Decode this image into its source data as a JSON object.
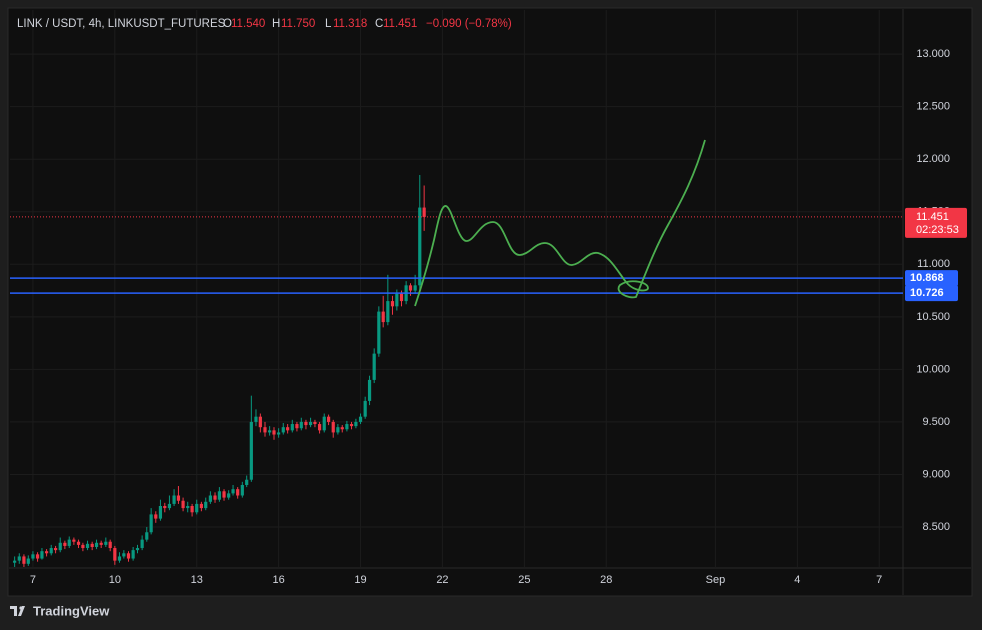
{
  "header": {
    "symbol": "LINK / USDT, 4h, LINKUSDT_FUTURES",
    "o_label": "O",
    "open": "11.540",
    "h_label": "H",
    "high": "11.750",
    "l_label": "L",
    "low": "11.318",
    "c_label": "C",
    "close": "11.451",
    "change": "−0.090 (−0.78%)"
  },
  "chart_data": {
    "type": "candlestick",
    "x": [
      6.33,
      6.5,
      6.67,
      6.83,
      7,
      7.17,
      7.33,
      7.5,
      7.67,
      7.83,
      8,
      8.17,
      8.33,
      8.5,
      8.67,
      8.83,
      9,
      9.17,
      9.33,
      9.5,
      9.67,
      9.83,
      10,
      10.17,
      10.33,
      10.5,
      10.67,
      10.83,
      11,
      11.17,
      11.33,
      11.5,
      11.67,
      11.83,
      12,
      12.17,
      12.33,
      12.5,
      12.67,
      12.83,
      13,
      13.17,
      13.33,
      13.5,
      13.67,
      13.83,
      14,
      14.17,
      14.33,
      14.5,
      14.67,
      14.83,
      15,
      15.17,
      15.33,
      15.5,
      15.67,
      15.83,
      16,
      16.17,
      16.33,
      16.5,
      16.67,
      16.83,
      17,
      17.17,
      17.33,
      17.5,
      17.67,
      17.83,
      18,
      18.17,
      18.33,
      18.5,
      18.67,
      18.83,
      19,
      19.17,
      19.33,
      19.5,
      19.67,
      19.83,
      20,
      20.17,
      20.33,
      20.5,
      20.67,
      20.83,
      21,
      21.17,
      21.33
    ],
    "ohlc": [
      [
        8.16,
        8.22,
        8.12,
        8.18
      ],
      [
        8.18,
        8.25,
        8.15,
        8.22
      ],
      [
        8.22,
        8.24,
        8.12,
        8.15
      ],
      [
        8.15,
        8.23,
        8.13,
        8.2
      ],
      [
        8.2,
        8.27,
        8.18,
        8.24
      ],
      [
        8.24,
        8.26,
        8.17,
        8.2
      ],
      [
        8.2,
        8.3,
        8.19,
        8.27
      ],
      [
        8.27,
        8.29,
        8.22,
        8.25
      ],
      [
        8.25,
        8.33,
        8.23,
        8.3
      ],
      [
        8.3,
        8.32,
        8.25,
        8.28
      ],
      [
        8.28,
        8.4,
        8.26,
        8.35
      ],
      [
        8.35,
        8.37,
        8.29,
        8.32
      ],
      [
        8.32,
        8.41,
        8.3,
        8.38
      ],
      [
        8.38,
        8.4,
        8.33,
        8.36
      ],
      [
        8.36,
        8.38,
        8.3,
        8.33
      ],
      [
        8.33,
        8.35,
        8.27,
        8.3
      ],
      [
        8.3,
        8.37,
        8.28,
        8.34
      ],
      [
        8.34,
        8.36,
        8.28,
        8.31
      ],
      [
        8.31,
        8.38,
        8.29,
        8.35
      ],
      [
        8.35,
        8.37,
        8.3,
        8.33
      ],
      [
        8.33,
        8.4,
        8.31,
        8.36
      ],
      [
        8.36,
        8.38,
        8.27,
        8.3
      ],
      [
        8.3,
        8.32,
        8.14,
        8.18
      ],
      [
        8.18,
        8.26,
        8.16,
        8.22
      ],
      [
        8.22,
        8.28,
        8.2,
        8.25
      ],
      [
        8.25,
        8.27,
        8.17,
        8.2
      ],
      [
        8.2,
        8.31,
        8.18,
        8.28
      ],
      [
        8.28,
        8.33,
        8.25,
        8.3
      ],
      [
        8.3,
        8.42,
        8.28,
        8.38
      ],
      [
        8.38,
        8.5,
        8.36,
        8.45
      ],
      [
        8.45,
        8.68,
        8.43,
        8.62
      ],
      [
        8.62,
        8.65,
        8.54,
        8.58
      ],
      [
        8.58,
        8.76,
        8.56,
        8.7
      ],
      [
        8.7,
        8.73,
        8.64,
        8.68
      ],
      [
        8.68,
        8.8,
        8.66,
        8.72
      ],
      [
        8.72,
        8.86,
        8.7,
        8.8
      ],
      [
        8.8,
        8.89,
        8.72,
        8.75
      ],
      [
        8.75,
        8.78,
        8.65,
        8.68
      ],
      [
        8.68,
        8.74,
        8.64,
        8.7
      ],
      [
        8.7,
        8.72,
        8.6,
        8.64
      ],
      [
        8.64,
        8.76,
        8.62,
        8.72
      ],
      [
        8.72,
        8.74,
        8.65,
        8.68
      ],
      [
        8.68,
        8.78,
        8.66,
        8.74
      ],
      [
        8.74,
        8.84,
        8.72,
        8.8
      ],
      [
        8.8,
        8.83,
        8.73,
        8.76
      ],
      [
        8.76,
        8.88,
        8.74,
        8.84
      ],
      [
        8.84,
        8.86,
        8.75,
        8.78
      ],
      [
        8.78,
        8.85,
        8.76,
        8.82
      ],
      [
        8.82,
        8.9,
        8.8,
        8.86
      ],
      [
        8.86,
        8.88,
        8.77,
        8.8
      ],
      [
        8.8,
        8.93,
        8.78,
        8.9
      ],
      [
        8.9,
        8.99,
        8.88,
        8.95
      ],
      [
        8.95,
        9.75,
        8.93,
        9.5
      ],
      [
        9.5,
        9.62,
        9.46,
        9.55
      ],
      [
        9.55,
        9.58,
        9.4,
        9.45
      ],
      [
        9.45,
        9.5,
        9.36,
        9.4
      ],
      [
        9.4,
        9.46,
        9.37,
        9.42
      ],
      [
        9.42,
        9.45,
        9.33,
        9.38
      ],
      [
        9.38,
        9.44,
        9.35,
        9.4
      ],
      [
        9.4,
        9.49,
        9.38,
        9.45
      ],
      [
        9.45,
        9.48,
        9.39,
        9.42
      ],
      [
        9.42,
        9.52,
        9.4,
        9.48
      ],
      [
        9.48,
        9.5,
        9.41,
        9.44
      ],
      [
        9.44,
        9.54,
        9.42,
        9.5
      ],
      [
        9.5,
        9.52,
        9.43,
        9.47
      ],
      [
        9.47,
        9.54,
        9.45,
        9.5
      ],
      [
        9.5,
        9.52,
        9.45,
        9.48
      ],
      [
        9.48,
        9.5,
        9.39,
        9.42
      ],
      [
        9.42,
        9.58,
        9.4,
        9.55
      ],
      [
        9.55,
        9.57,
        9.47,
        9.5
      ],
      [
        9.5,
        9.52,
        9.35,
        9.4
      ],
      [
        9.4,
        9.48,
        9.38,
        9.45
      ],
      [
        9.45,
        9.47,
        9.4,
        9.43
      ],
      [
        9.43,
        9.51,
        9.41,
        9.48
      ],
      [
        9.48,
        9.5,
        9.43,
        9.46
      ],
      [
        9.46,
        9.53,
        9.44,
        9.5
      ],
      [
        9.5,
        9.58,
        9.48,
        9.55
      ],
      [
        9.55,
        9.74,
        9.53,
        9.7
      ],
      [
        9.7,
        9.94,
        9.66,
        9.9
      ],
      [
        9.9,
        10.2,
        9.87,
        10.15
      ],
      [
        10.15,
        10.6,
        10.12,
        10.55
      ],
      [
        10.55,
        10.7,
        10.4,
        10.45
      ],
      [
        10.45,
        10.9,
        10.42,
        10.65
      ],
      [
        10.65,
        10.7,
        10.52,
        10.6
      ],
      [
        10.6,
        10.76,
        10.56,
        10.72
      ],
      [
        10.72,
        10.75,
        10.6,
        10.65
      ],
      [
        10.65,
        10.84,
        10.62,
        10.8
      ],
      [
        10.8,
        10.82,
        10.7,
        10.75
      ],
      [
        10.75,
        10.9,
        10.72,
        10.8
      ],
      [
        10.8,
        11.85,
        10.75,
        11.54
      ],
      [
        11.54,
        11.75,
        11.318,
        11.451
      ]
    ],
    "up_color": "#089981",
    "down_color": "#f23645",
    "xlim": [
      6.16,
      38.87
    ],
    "xticks": [
      7,
      10,
      13,
      16,
      19,
      22,
      25,
      28,
      {
        "value": 32,
        "label": "Sep"
      },
      {
        "value": 35,
        "label": "4"
      },
      {
        "value": 38,
        "label": "7"
      }
    ],
    "ylim": [
      8.11,
      13.42
    ],
    "yticks": [
      {
        "value": 8.5,
        "label": "8.500"
      },
      {
        "value": 9,
        "label": "9.000"
      },
      {
        "value": 9.5,
        "label": "9.500"
      },
      {
        "value": 10,
        "label": "10.000"
      },
      {
        "value": 10.5,
        "label": "10.500"
      },
      {
        "value": 11,
        "label": "11.000"
      },
      {
        "value": 11.5,
        "label": "11.500"
      },
      {
        "value": 12,
        "label": "12.000"
      },
      {
        "value": 12.5,
        "label": "12.500"
      },
      {
        "value": 13,
        "label": "13.000"
      }
    ],
    "grid": true,
    "last_price": {
      "value": 11.451,
      "countdown": "02:23:53",
      "color": "#f23645"
    },
    "hlines": [
      {
        "value": 10.868,
        "color": "#2962ff"
      },
      {
        "value": 10.726,
        "color": "#2962ff"
      }
    ]
  },
  "footer": {
    "brand": "TradingView"
  }
}
